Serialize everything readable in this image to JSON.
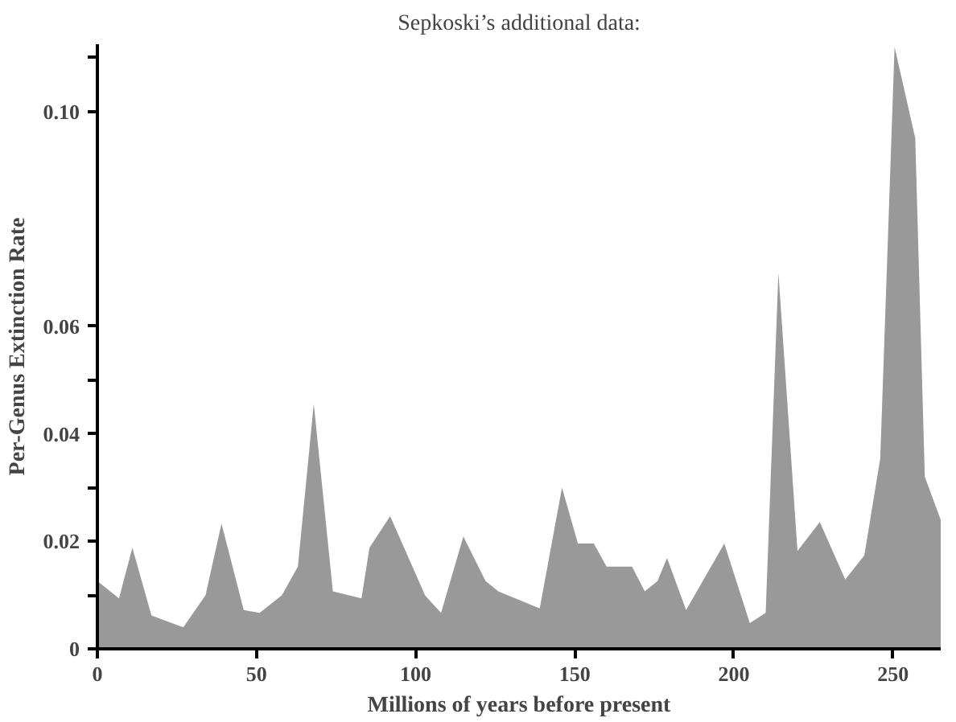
{
  "chart_data": {
    "type": "area",
    "title": "Sepkoski’s additional data:",
    "xlabel": "Millions of years before present",
    "ylabel": "Per-Genus Extinction Rate",
    "x": [
      0,
      6.8,
      11,
      17,
      27,
      34,
      39,
      46,
      51,
      58,
      63,
      68,
      74,
      83,
      85.5,
      92,
      99,
      103,
      108,
      115,
      122,
      126,
      139,
      146,
      151,
      156,
      160,
      168,
      172,
      176,
      179,
      185,
      197,
      205,
      210,
      214,
      220,
      227,
      235,
      241,
      246,
      250.5,
      257,
      260,
      265
    ],
    "series": [
      {
        "color": "#999999",
        "values": [
          0.0126,
          0.0094,
          0.0188,
          0.0062,
          0.004,
          0.01,
          0.0233,
          0.0072,
          0.0067,
          0.01,
          0.0153,
          0.0456,
          0.0107,
          0.0094,
          0.0188,
          0.0247,
          0.0153,
          0.0099,
          0.0067,
          0.0209,
          0.0126,
          0.0107,
          0.0075,
          0.03,
          0.0196,
          0.0196,
          0.0153,
          0.0153,
          0.0107,
          0.0126,
          0.0169,
          0.0072,
          0.0196,
          0.0048,
          0.0067,
          0.07,
          0.0182,
          0.0236,
          0.0129,
          0.0174,
          0.0354,
          0.112,
          0.095,
          0.032,
          0.024
        ]
      }
    ],
    "xlim": [
      0,
      265
    ],
    "xticks": [
      0,
      50,
      100,
      150,
      200,
      250
    ],
    "ylim": [
      0,
      0.1125
    ],
    "yticks": [
      0,
      {
        "value": 0.01,
        "label": null
      },
      {
        "value": 0.02,
        "label": "0.02"
      },
      {
        "value": 0.03,
        "label": null
      },
      {
        "value": 0.04,
        "label": "0.04"
      },
      {
        "value": 0.05,
        "label": null
      },
      {
        "value": 0.06,
        "label": "0.06"
      },
      {
        "value": 0.1,
        "label": "0.10"
      },
      {
        "value": 0.11,
        "label": null
      }
    ],
    "grid": false
  }
}
